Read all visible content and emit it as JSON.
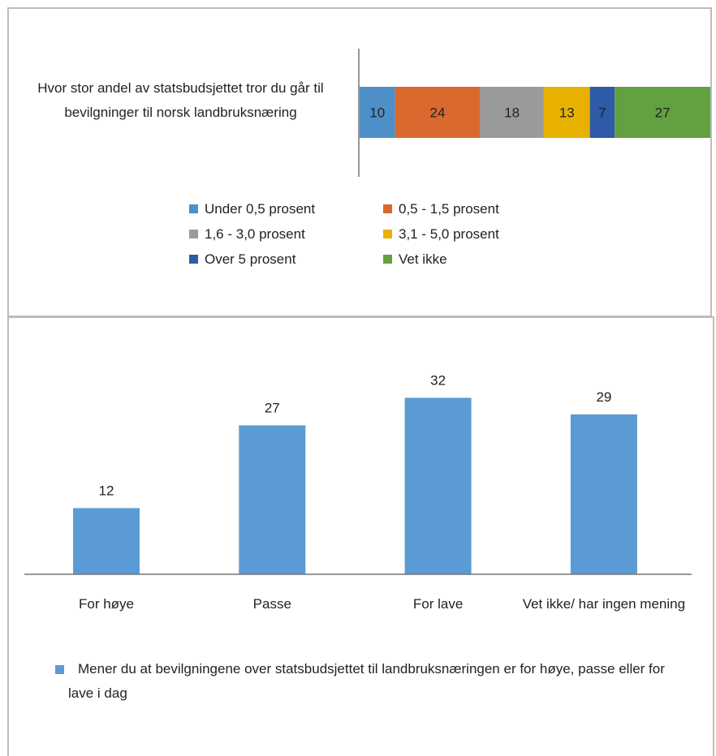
{
  "chart_data": [
    {
      "type": "bar",
      "orientation": "horizontal",
      "stacked": true,
      "categories": [
        "Hvor stor andel av statsbudsjettet tror du går til bevilgninger til norsk landbruksnæring"
      ],
      "series": [
        {
          "name": "Under 0,5 prosent",
          "color": "#4e8fc8",
          "values": [
            10
          ]
        },
        {
          "name": "0,5 - 1,5 prosent",
          "color": "#d9692e",
          "values": [
            24
          ]
        },
        {
          "name": "1,6 - 3,0 prosent",
          "color": "#9a9a9a",
          "values": [
            18
          ]
        },
        {
          "name": "3,1 - 5,0 prosent",
          "color": "#e8b100",
          "values": [
            13
          ]
        },
        {
          "name": "Over 5 prosent",
          "color": "#2e5aa8",
          "values": [
            7
          ]
        },
        {
          "name": "Vet ikke",
          "color": "#63a03f",
          "values": [
            27
          ]
        }
      ],
      "legend": "bottom"
    },
    {
      "type": "bar",
      "orientation": "vertical",
      "categories": [
        "For høye",
        "Passe",
        "For lave",
        "Vet ikke/ har ingen mening"
      ],
      "series": [
        {
          "name": "Mener du at bevilgningene over statsbudsjettet til landbruksnæringen er for høye, passe eller for lave i dag",
          "color": "#5b9bd5",
          "values": [
            12,
            27,
            32,
            29
          ]
        }
      ],
      "ylim": [
        0,
        35
      ],
      "legend": "bottom"
    }
  ]
}
